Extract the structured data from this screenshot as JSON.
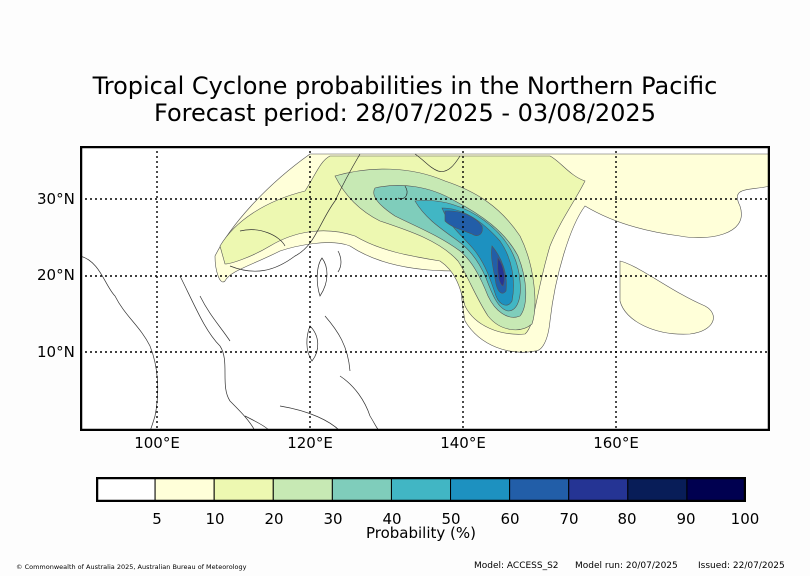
{
  "title": {
    "line1": "Tropical Cyclone probabilities in the Northern Pacific",
    "line2": "Forecast period: 28/07/2025 - 03/08/2025"
  },
  "map": {
    "lat_labels": [
      "30°N",
      "20°N",
      "10°N"
    ],
    "lon_labels": [
      "100°E",
      "120°E",
      "140°E",
      "160°E"
    ],
    "gridlines": "dotted"
  },
  "colorbar": {
    "label": "Probability (%)",
    "ticks": [
      "5",
      "10",
      "20",
      "30",
      "40",
      "50",
      "60",
      "70",
      "80",
      "90",
      "100"
    ],
    "colors": [
      "#ffffff",
      "#ffffd9",
      "#edf8b1",
      "#c7e9b4",
      "#7fcdbb",
      "#41b6c4",
      "#1d91c0",
      "#225ea8",
      "#253494",
      "#081d58",
      "#000050"
    ]
  },
  "footer": {
    "copyright": "© Commonwealth of Australia 2025, Australian Bureau of Meteorology",
    "model": "Model: ACCESS_S2",
    "model_run": "Model run: 20/07/2025",
    "issued": "Issued: 22/07/2025"
  }
}
